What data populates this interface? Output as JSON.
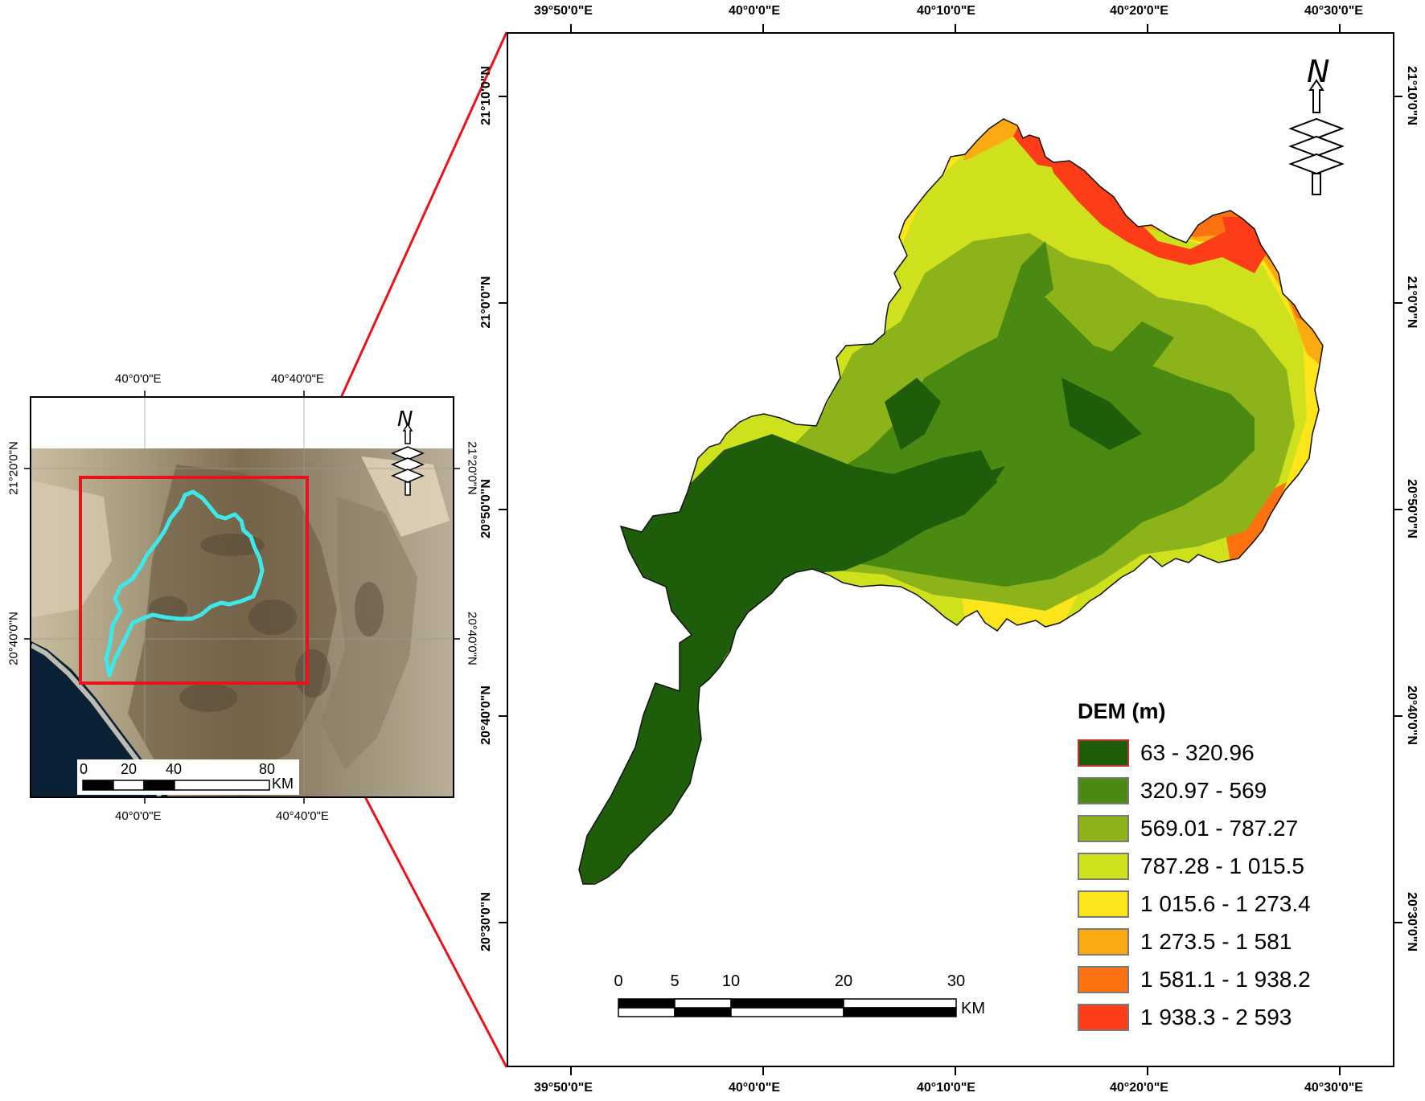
{
  "main_map": {
    "top_labels": [
      "39°50'0\"E",
      "40°0'0\"E",
      "40°10'0\"E",
      "40°20'0\"E",
      "40°30'0\"E"
    ],
    "bottom_labels": [
      "39°50'0\"E",
      "40°0'0\"E",
      "40°10'0\"E",
      "40°20'0\"E",
      "40°30'0\"E"
    ],
    "left_labels": [
      "21°10'0\"N",
      "21°0'0\"N",
      "20°50'0\"N",
      "20°40'0\"N",
      "20°30'0\"N"
    ],
    "right_labels": [
      "21°10'0\"N",
      "21°0'0\"N",
      "20°50'0\"N",
      "20°40'0\"N",
      "20°30'0\"N"
    ],
    "north_letter": "N",
    "scale": {
      "ticks": [
        "0",
        "5",
        "10",
        "20",
        "30"
      ],
      "unit": "KM"
    }
  },
  "legend": {
    "title": "DEM (m)",
    "items": [
      {
        "label": "63 - 320.96",
        "color": "#1e5e0a"
      },
      {
        "label": "320.97 - 569",
        "color": "#4a8a12"
      },
      {
        "label": "569.01 - 787.27",
        "color": "#8db31a"
      },
      {
        "label": "787.28 - 1 015.5",
        "color": "#cfe01c"
      },
      {
        "label": "1 015.6 - 1 273.4",
        "color": "#fce51a"
      },
      {
        "label": "1 273.5 - 1 581",
        "color": "#fcaa12"
      },
      {
        "label": "1 581.1 - 1 938.2",
        "color": "#fc7210"
      },
      {
        "label": "1 938.3 - 2 593",
        "color": "#fc3d18"
      }
    ]
  },
  "inset_map": {
    "top_labels": [
      "40°0'0\"E",
      "40°40'0\"E"
    ],
    "bottom_labels": [
      "40°0'0\"E",
      "40°40'0\"E"
    ],
    "left_labels": [
      "21°20'0\"N",
      "20°40'0\"N"
    ],
    "right_labels": [
      "21°20'0\"N",
      "20°40'0\"N"
    ],
    "north_letter": "N",
    "scale": {
      "ticks": [
        "0",
        "20",
        "40",
        "80"
      ],
      "unit": "KM"
    }
  },
  "colors": {
    "highlight_box": "#e8141c",
    "watershed_outline": "#3ee8ea"
  }
}
